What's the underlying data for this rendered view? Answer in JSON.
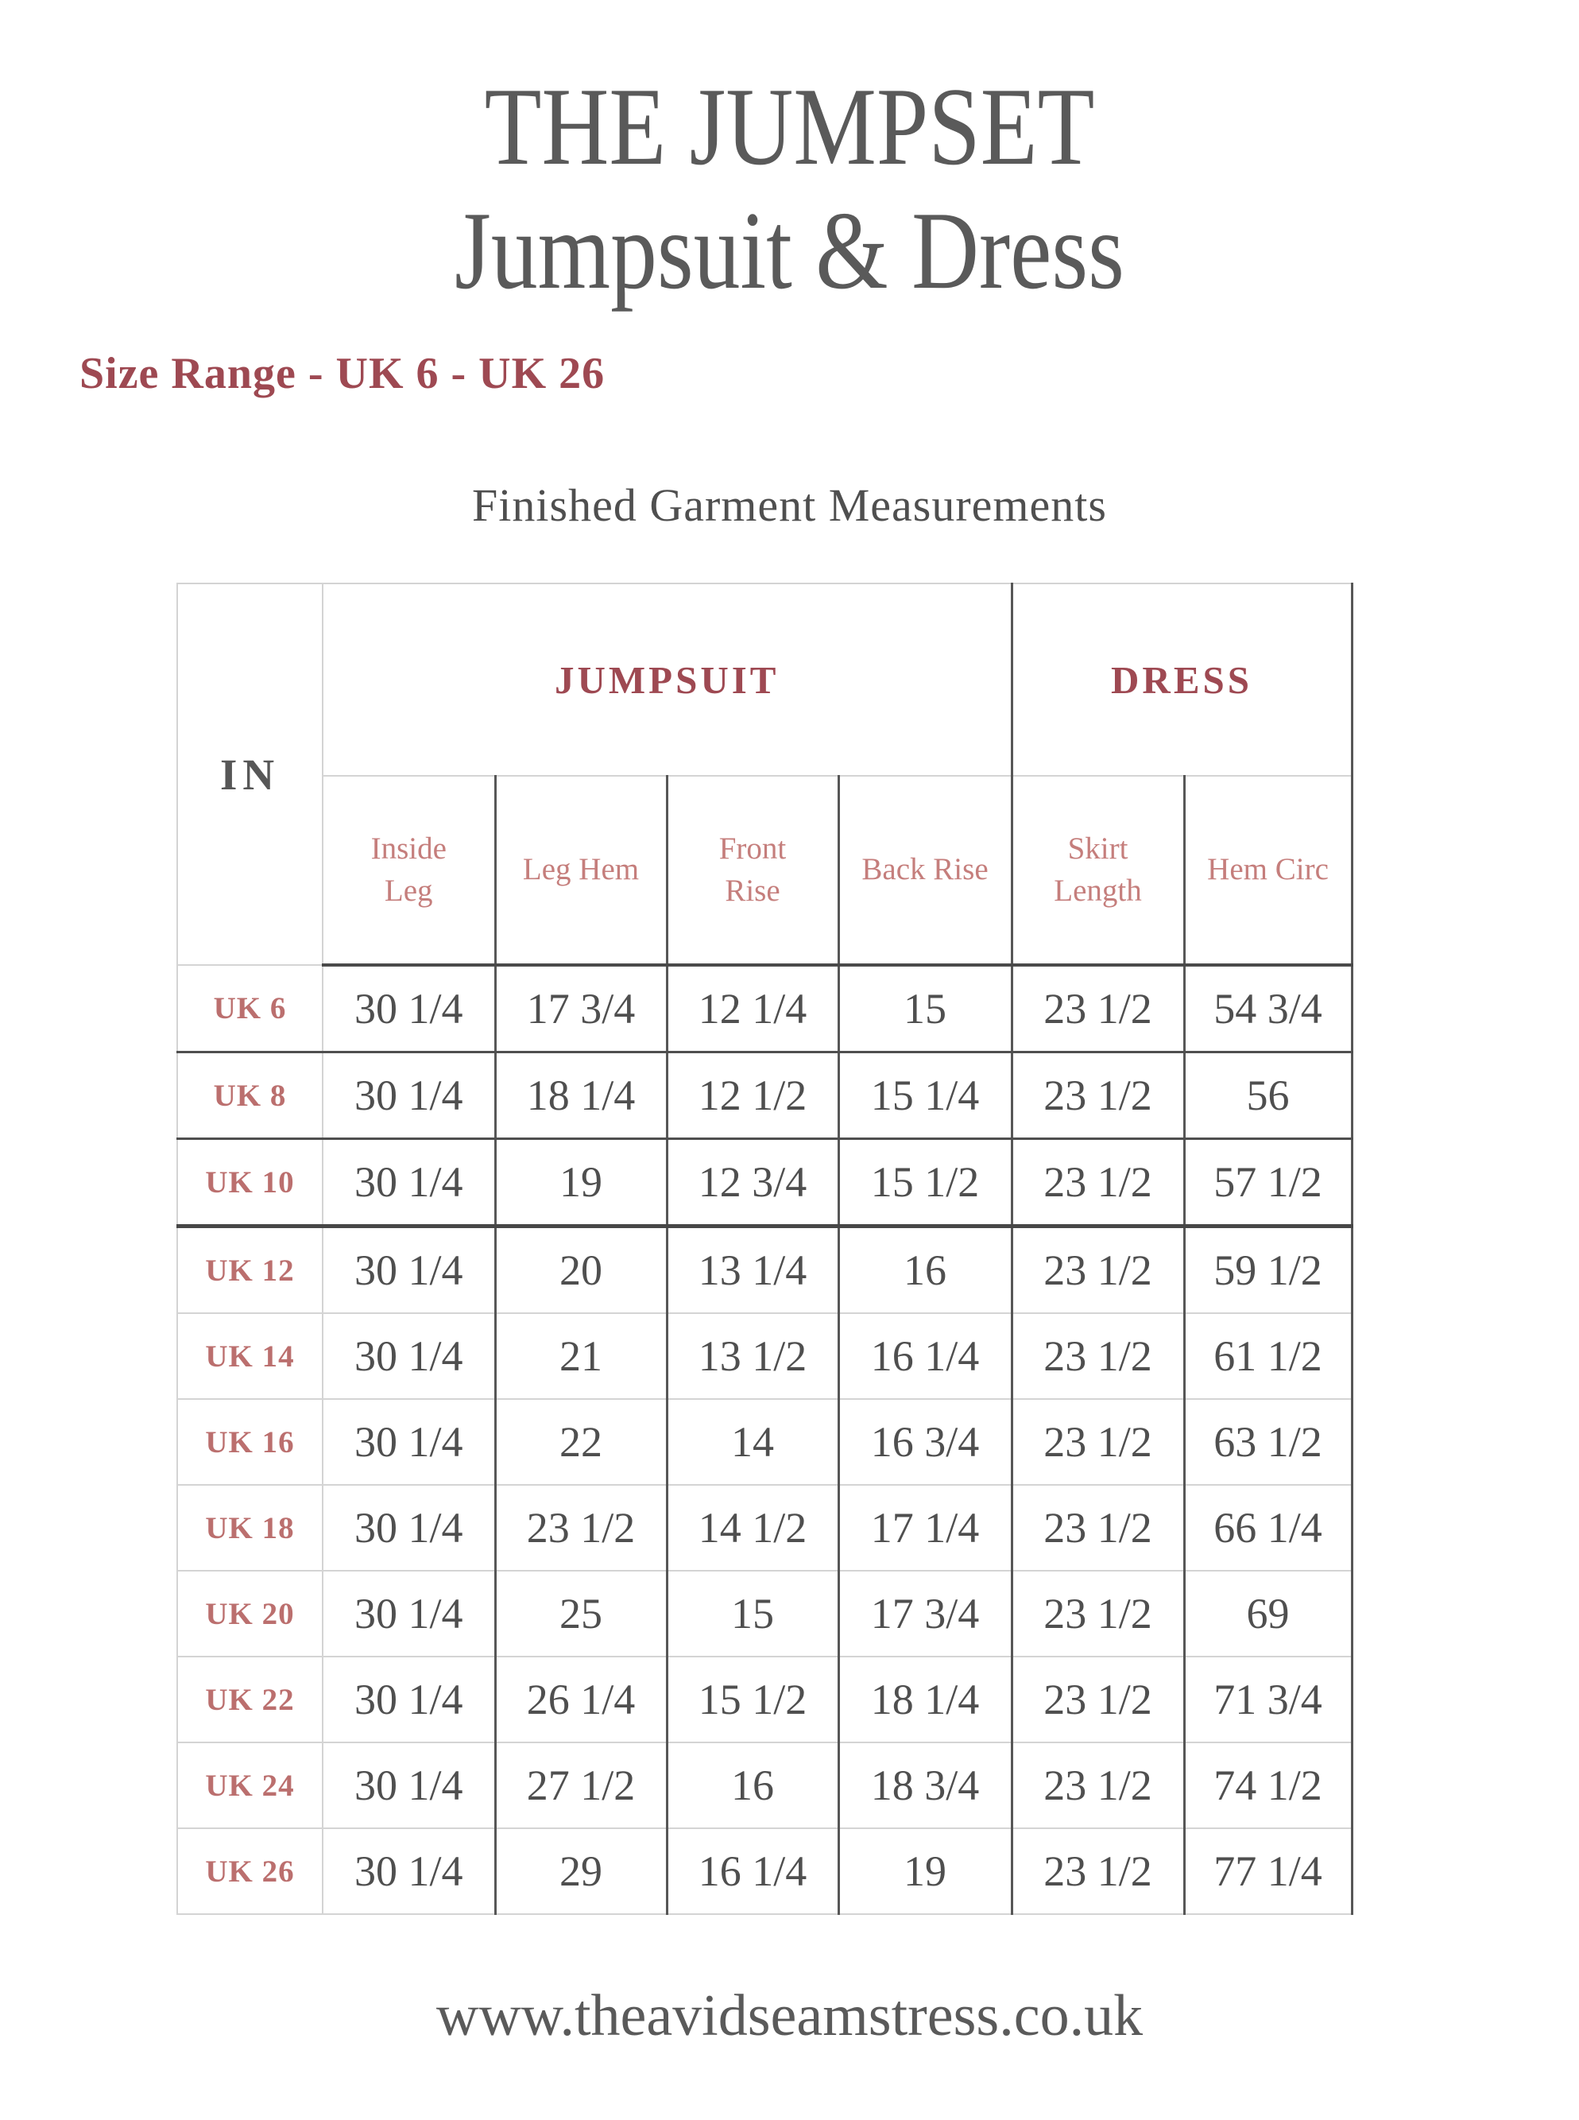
{
  "header": {
    "title_line1": "THE JUMPSET",
    "title_line2": "Jumpsuit & Dress",
    "size_range": "Size Range - UK 6 - UK 26"
  },
  "table": {
    "caption": "Finished Garment Measurements",
    "unit_label": "IN",
    "groups": [
      {
        "label": "JUMPSUIT",
        "span": 4
      },
      {
        "label": "DRESS",
        "span": 2
      }
    ],
    "columns": [
      "Inside Leg",
      "Leg Hem",
      "Front Rise",
      "Back Rise",
      "Skirt Length",
      "Hem Circ"
    ],
    "rows": [
      {
        "size": "UK 6",
        "values": [
          "30 1/4",
          "17 3/4",
          "12 1/4",
          "15",
          "23 1/2",
          "54 3/4"
        ]
      },
      {
        "size": "UK 8",
        "values": [
          "30 1/4",
          "18 1/4",
          "12 1/2",
          "15 1/4",
          "23 1/2",
          "56"
        ]
      },
      {
        "size": "UK 10",
        "values": [
          "30 1/4",
          "19",
          "12 3/4",
          "15 1/2",
          "23 1/2",
          "57 1/2"
        ]
      },
      {
        "size": "UK 12",
        "values": [
          "30 1/4",
          "20",
          "13 1/4",
          "16",
          "23 1/2",
          "59 1/2"
        ]
      },
      {
        "size": "UK 14",
        "values": [
          "30 1/4",
          "21",
          "13 1/2",
          "16 1/4",
          "23 1/2",
          "61 1/2"
        ]
      },
      {
        "size": "UK 16",
        "values": [
          "30 1/4",
          "22",
          "14",
          "16 3/4",
          "23 1/2",
          "63 1/2"
        ]
      },
      {
        "size": "UK 18",
        "values": [
          "30 1/4",
          "23 1/2",
          "14 1/2",
          "17 1/4",
          "23 1/2",
          "66 1/4"
        ]
      },
      {
        "size": "UK 20",
        "values": [
          "30 1/4",
          "25",
          "15",
          "17 3/4",
          "23 1/2",
          "69"
        ]
      },
      {
        "size": "UK 22",
        "values": [
          "30 1/4",
          "26 1/4",
          "15 1/2",
          "18 1/4",
          "23 1/2",
          "71 3/4"
        ]
      },
      {
        "size": "UK 24",
        "values": [
          "30 1/4",
          "27 1/2",
          "16",
          "18 3/4",
          "23 1/2",
          "74 1/2"
        ]
      },
      {
        "size": "UK 26",
        "values": [
          "30 1/4",
          "29",
          "16 1/4",
          "19",
          "23 1/2",
          "77 1/4"
        ]
      }
    ]
  },
  "footer": {
    "url": "www.theavidseamstress.co.uk"
  },
  "colors": {
    "heading_gray": "#5a5a5a",
    "deep_maroon": "#9e4952",
    "salmon": "#c57e7c",
    "row_label_rose": "#bb6f6e",
    "value_gray": "#4f4f4f",
    "light_border": "#d4d4d4",
    "dark_border": "#4f4f4f"
  }
}
